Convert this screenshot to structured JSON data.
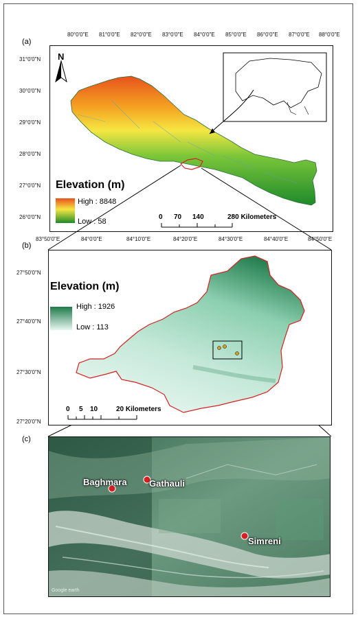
{
  "panels": {
    "a": {
      "label": "(a)",
      "top_ticks": [
        "80°0'0\"E",
        "81°0'0\"E",
        "82°0'0\"E",
        "83°0'0\"E",
        "84°0'0\"E",
        "85°0'0\"E",
        "86°0'0\"E",
        "87°0'0\"E",
        "88°0'0\"E"
      ],
      "left_ticks": [
        "31°0'0\"N",
        "30°0'0\"N",
        "29°0'0\"N",
        "28°0'0\"N",
        "27°0'0\"N",
        "26°0'0\"N"
      ],
      "north": "N",
      "legend_title": "Elevation (m)",
      "legend_high": "High : 8848",
      "legend_low": "Low : 58",
      "scale_labels": [
        "0",
        "70",
        "140",
        "280 Kilometers"
      ]
    },
    "b": {
      "label": "(b)",
      "top_ticks": [
        "83°50'0\"E",
        "84°0'0\"E",
        "84°10'0\"E",
        "84°20'0\"E",
        "84°30'0\"E",
        "84°40'0\"E",
        "84°50'0\"E"
      ],
      "left_ticks": [
        "27°50'0\"N",
        "27°40'0\"N",
        "27°30'0\"N",
        "27°20'0\"N"
      ],
      "legend_title": "Elevation (m)",
      "legend_high": "High : 1926",
      "legend_low": "Low : 113",
      "scale_labels": [
        "0",
        "5",
        "10",
        "20 Kilometers"
      ]
    },
    "c": {
      "label": "(c)",
      "places": [
        "Baghmara",
        "Gathauli",
        "Simreni"
      ],
      "attribution": "Google earth"
    }
  },
  "colors": {
    "high_a": "#e8521c",
    "mid_a": "#f5e642",
    "low_a": "#1e8a2a",
    "high_b": "#1f7a4a",
    "low_b": "#e6f6f0",
    "boundary_b": "#d62020",
    "marker": "#d42020"
  }
}
